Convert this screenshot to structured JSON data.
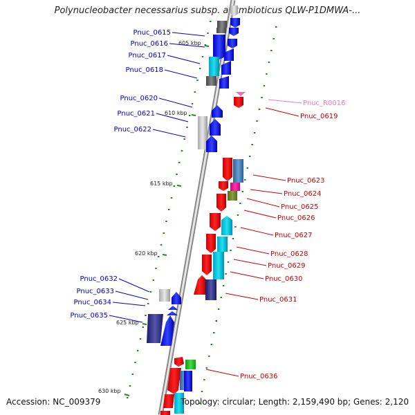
{
  "title": "Polynucleobacter necessarius subsp. asymbioticus QLW-P1DMWA-...",
  "footer": {
    "accession": "Accession: NC_009379",
    "summary": "Topology: circular; Length: 2,159,490 bp; Genes: 2,120"
  },
  "colors": {
    "blue_label": "#0000cc",
    "red_label": "#cc0000",
    "pink_label": "#ee77cc",
    "backbone": "#888888",
    "tick": "#228822"
  },
  "kbp_marks": [
    {
      "id": "605",
      "label": "605 kbp"
    },
    {
      "id": "610",
      "label": "610 kbp"
    },
    {
      "id": "615",
      "label": "615 kbp"
    },
    {
      "id": "620",
      "label": "620 kbp"
    },
    {
      "id": "625",
      "label": "625 kbp"
    },
    {
      "id": "630",
      "label": "630 kbp"
    }
  ],
  "genes": [
    {
      "id": "Pnuc_0615",
      "label": "Pnuc_0615"
    },
    {
      "id": "Pnuc_0616",
      "label": "Pnuc_0616"
    },
    {
      "id": "Pnuc_0617",
      "label": "Pnuc_0617"
    },
    {
      "id": "Pnuc_0618",
      "label": "Pnuc_0618"
    },
    {
      "id": "Pnuc_0620",
      "label": "Pnuc_0620"
    },
    {
      "id": "Pnuc_0621",
      "label": "Pnuc_0621"
    },
    {
      "id": "Pnuc_0622",
      "label": "Pnuc_0622"
    },
    {
      "id": "Pnuc_0632",
      "label": "Pnuc_0632"
    },
    {
      "id": "Pnuc_0633",
      "label": "Pnuc_0633"
    },
    {
      "id": "Pnuc_0634",
      "label": "Pnuc_0634"
    },
    {
      "id": "Pnuc_0635",
      "label": "Pnuc_0635"
    },
    {
      "id": "Pnuc_R0016",
      "label": "Pnuc_R0016"
    },
    {
      "id": "Pnuc_0619",
      "label": "Pnuc_0619"
    },
    {
      "id": "Pnuc_0623",
      "label": "Pnuc_0623"
    },
    {
      "id": "Pnuc_0624",
      "label": "Pnuc_0624"
    },
    {
      "id": "Pnuc_0625",
      "label": "Pnuc_0625"
    },
    {
      "id": "Pnuc_0626",
      "label": "Pnuc_0626"
    },
    {
      "id": "Pnuc_0627",
      "label": "Pnuc_0627"
    },
    {
      "id": "Pnuc_0628",
      "label": "Pnuc_0628"
    },
    {
      "id": "Pnuc_0629",
      "label": "Pnuc_0629"
    },
    {
      "id": "Pnuc_0630",
      "label": "Pnuc_0630"
    },
    {
      "id": "Pnuc_0631",
      "label": "Pnuc_0631"
    },
    {
      "id": "Pnuc_0636",
      "label": "Pnuc_0636"
    }
  ]
}
